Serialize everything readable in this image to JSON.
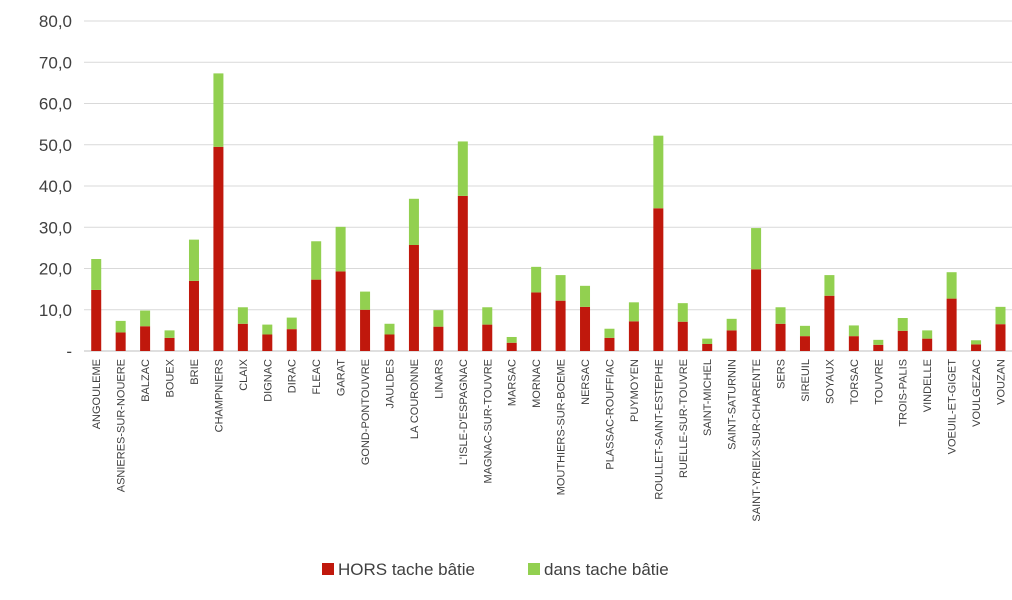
{
  "chart_data": {
    "type": "bar",
    "stacked": true,
    "title": "",
    "xlabel": "",
    "ylabel": "",
    "ylim": [
      0,
      80
    ],
    "yticks": [
      {
        "value": 0,
        "label": "-"
      },
      {
        "value": 10,
        "label": "10,0"
      },
      {
        "value": 20,
        "label": "20,0"
      },
      {
        "value": 30,
        "label": "30,0"
      },
      {
        "value": 40,
        "label": "40,0"
      },
      {
        "value": 50,
        "label": "50,0"
      },
      {
        "value": 60,
        "label": "60,0"
      },
      {
        "value": 70,
        "label": "70,0"
      },
      {
        "value": 80,
        "label": "80,0"
      }
    ],
    "grid": true,
    "legend_position": "bottom",
    "categories": [
      "ANGOULEME",
      "ASNIERES-SUR-NOUERE",
      "BALZAC",
      "BOUEX",
      "BRIE",
      "CHAMPNIERS",
      "CLAIX",
      "DIGNAC",
      "DIRAC",
      "FLEAC",
      "GARAT",
      "GOND-PONTOUVRE",
      "JAULDES",
      "LA COURONNE",
      "LINARS",
      "L'ISLE-D'ESPAGNAC",
      "MAGNAC-SUR-TOUVRE",
      "MARSAC",
      "MORNAC",
      "MOUTHIERS-SUR-BOEME",
      "NERSAC",
      "PLASSAC-ROUFFIAC",
      "PUYMOYEN",
      "ROULLET-SAINT-ESTEPHE",
      "RUELLE-SUR-TOUVRE",
      "SAINT-MICHEL",
      "SAINT-SATURNIN",
      "SAINT-YRIEIX-SUR-CHARENTE",
      "SERS",
      "SIREUIL",
      "SOYAUX",
      "TORSAC",
      "TOUVRE",
      "TROIS-PALIS",
      "VINDELLE",
      "VOEUIL-ET-GIGET",
      "VOULGEZAC",
      "VOUZAN"
    ],
    "series": [
      {
        "name": "HORS tache bâtie",
        "color": "#c0180c",
        "values": [
          14.8,
          4.5,
          6.0,
          3.2,
          17.0,
          49.5,
          6.6,
          4.0,
          5.3,
          17.3,
          19.3,
          10.0,
          4.0,
          25.7,
          5.9,
          37.6,
          6.4,
          2.0,
          14.2,
          12.2,
          10.7,
          3.2,
          7.2,
          34.6,
          7.1,
          1.7,
          5.0,
          19.8,
          6.6,
          3.6,
          13.4,
          3.6,
          1.5,
          4.9,
          3.0,
          12.7,
          1.6,
          6.5
        ]
      },
      {
        "name": "dans tache bâtie",
        "color": "#92d050",
        "values": [
          7.5,
          2.8,
          3.8,
          1.8,
          10.0,
          17.8,
          4.0,
          2.4,
          2.8,
          9.3,
          10.8,
          4.4,
          2.6,
          11.2,
          4.0,
          13.2,
          4.2,
          1.4,
          6.2,
          6.2,
          5.1,
          2.2,
          4.6,
          17.6,
          4.5,
          1.3,
          2.8,
          10.0,
          4.0,
          2.5,
          5.0,
          2.6,
          1.2,
          3.1,
          2.0,
          6.4,
          1.0,
          4.2
        ]
      }
    ]
  }
}
